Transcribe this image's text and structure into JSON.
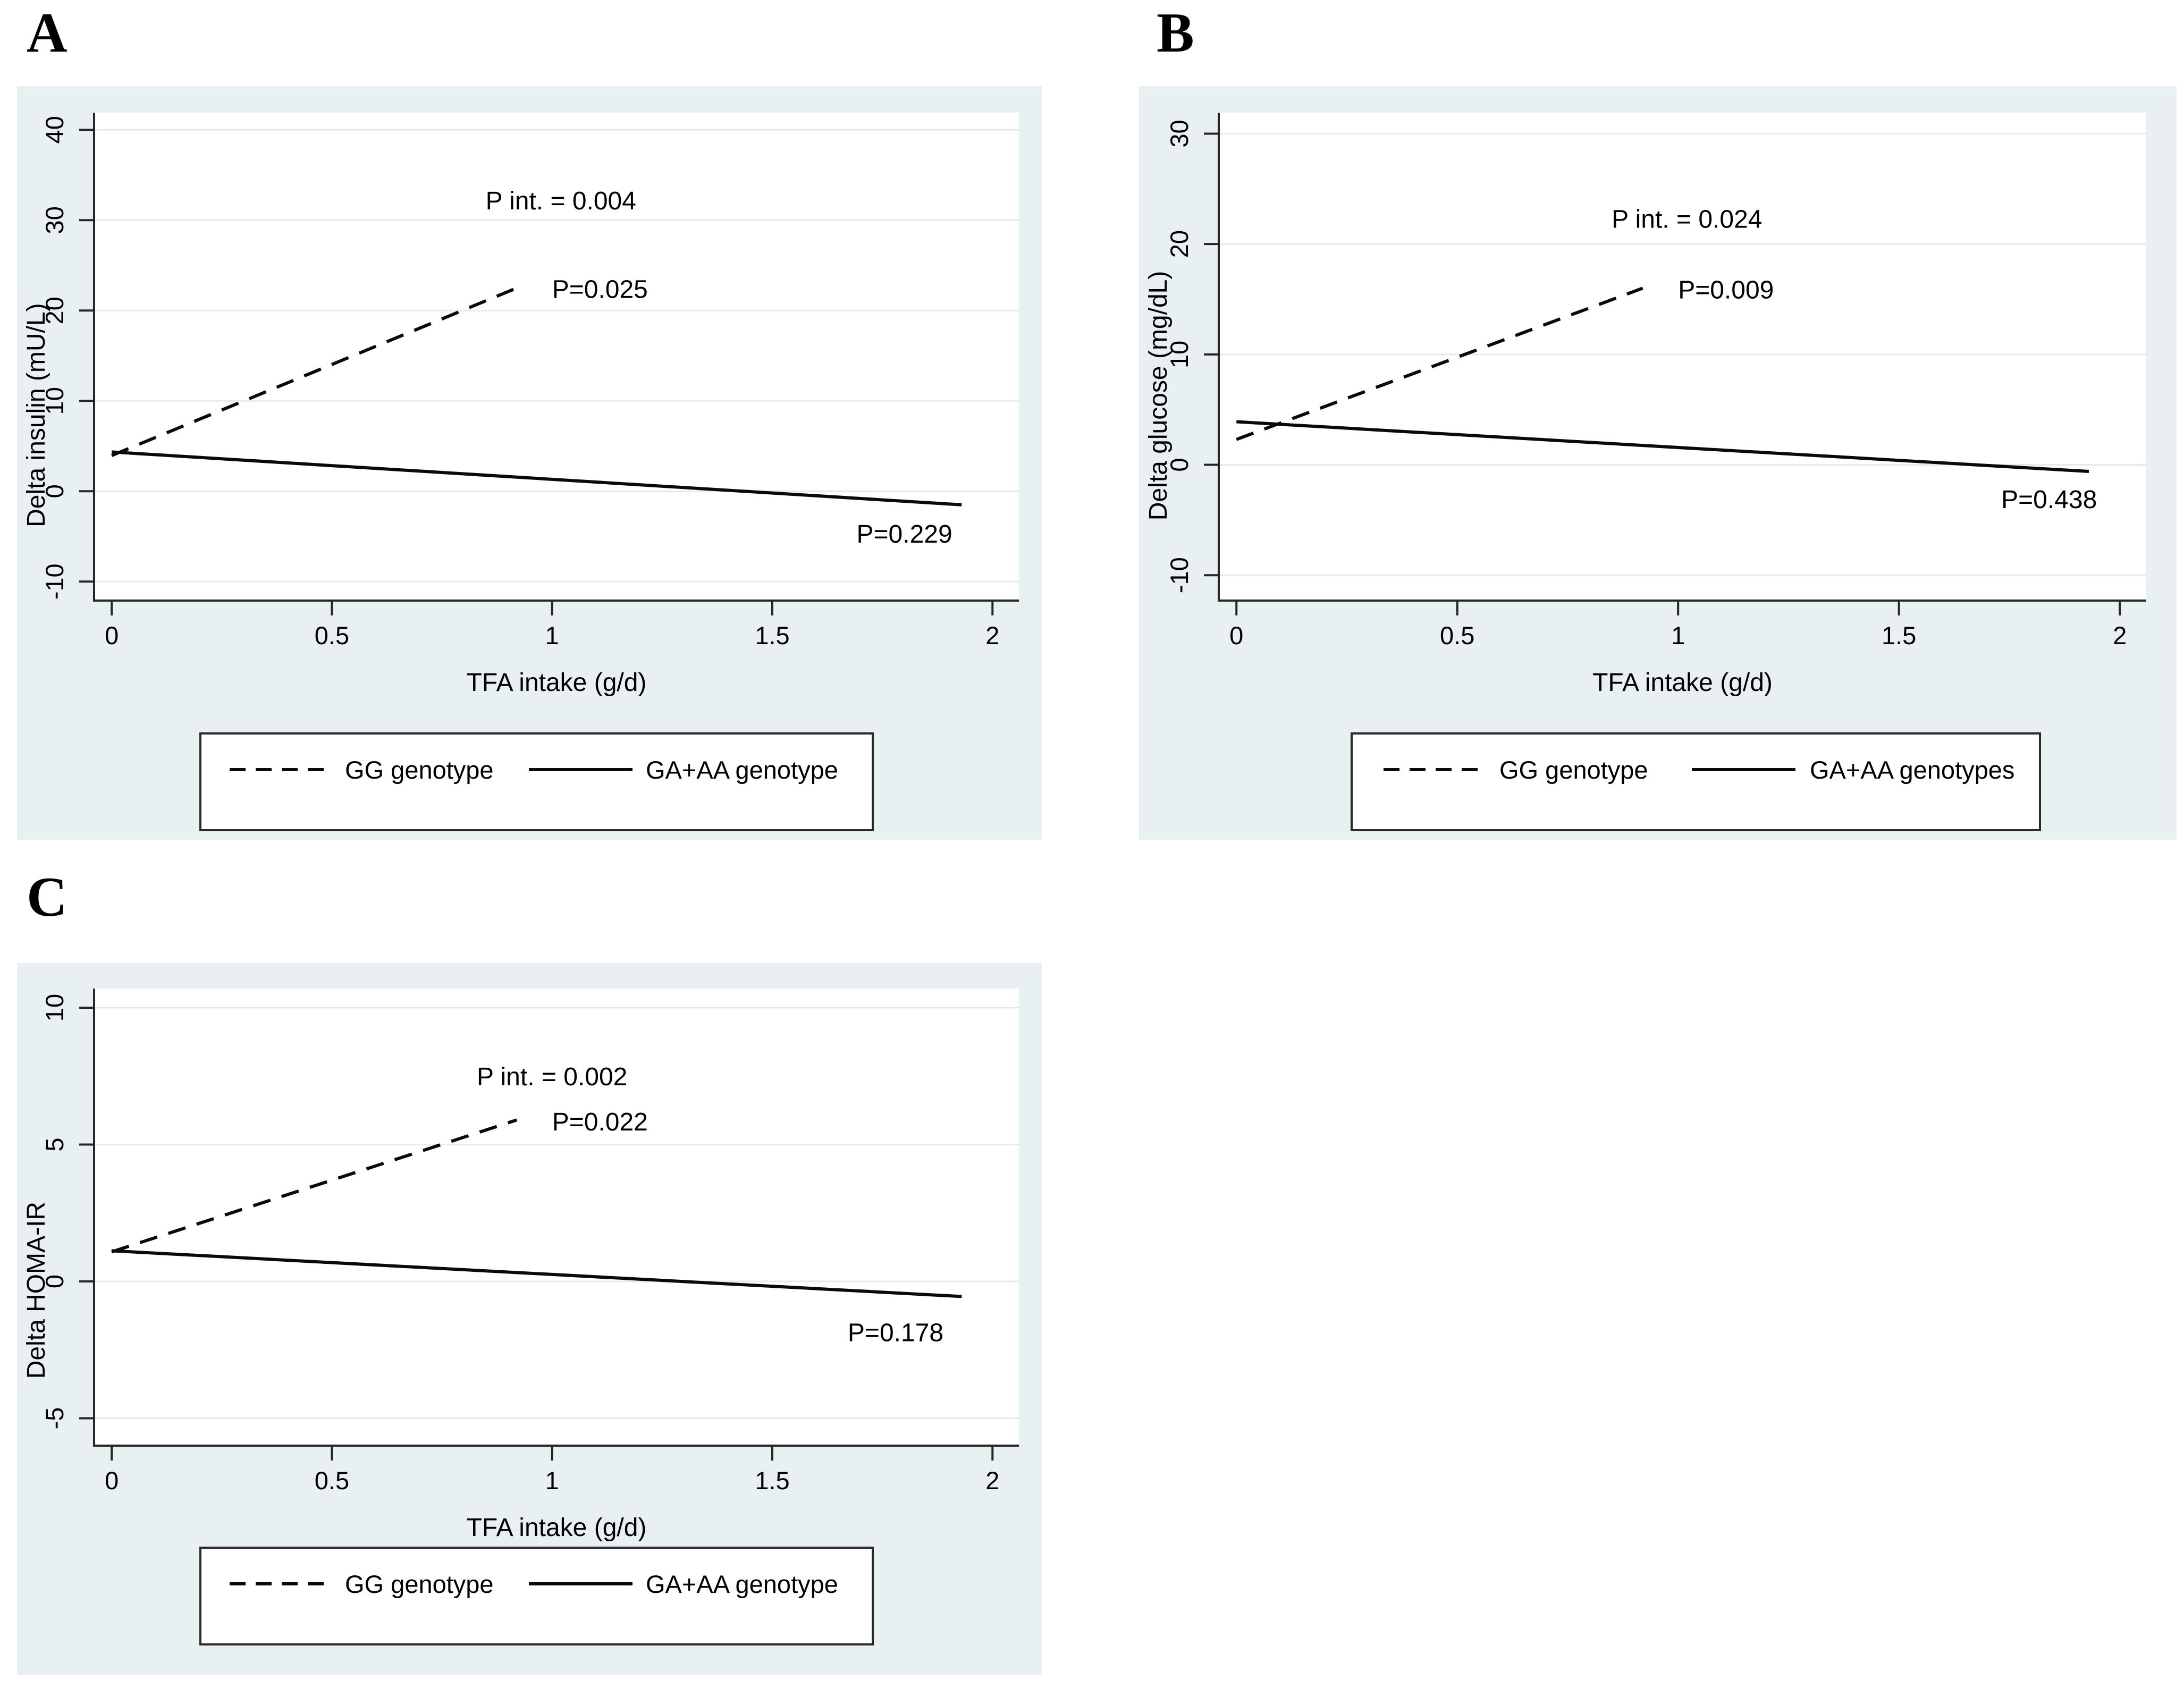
{
  "figure": {
    "description": "Interaction of TFA intake and genotype on metabolic changes",
    "panel_letters": [
      "A",
      "B",
      "C"
    ]
  },
  "theme": {
    "page_bg": "#ffffff",
    "panel_bg": "#e9f0f2",
    "plot_bg": "#ffffff",
    "grid_color": "#e2ebee",
    "axis_color": "#262626",
    "line_color": "#0a0a0a",
    "text_color": "#000000",
    "legend_border": "#2a2a2a"
  },
  "chart_data": [
    {
      "type": "line",
      "panel_label": "A",
      "xlabel": "TFA intake (g/d)",
      "ylabel": "Delta insulin (mU/L)",
      "xlim": [
        -0.04,
        2.06
      ],
      "ylim": [
        -12.1,
        41.9
      ],
      "xticks": [
        0,
        0.5,
        1,
        1.5,
        2
      ],
      "yticks": [
        -10,
        0,
        10,
        20,
        30,
        40
      ],
      "grid": true,
      "legend_position": "bottom",
      "series": [
        {
          "name": "GG genotype",
          "style": "dashed",
          "points": [
            [
              0,
              3.95
            ],
            [
              0.92,
              22.5
            ]
          ]
        },
        {
          "name": "GA+AA genotype",
          "style": "solid",
          "points": [
            [
              0,
              4.35
            ],
            [
              1.93,
              -1.5
            ]
          ]
        }
      ],
      "annotations": [
        {
          "text": "P int. = 0.004",
          "x": 1.02,
          "y": 32.2,
          "anchor": "middle"
        },
        {
          "text": "P=0.025",
          "x": 1.0,
          "y": 22.4,
          "anchor": "start"
        },
        {
          "text": "P=0.229",
          "x": 1.8,
          "y": -4.7,
          "anchor": "middle"
        }
      ],
      "legend": [
        {
          "label": "GG genotype",
          "style": "dashed"
        },
        {
          "label": "GA+AA genotype",
          "style": "solid"
        }
      ]
    },
    {
      "type": "line",
      "panel_label": "B",
      "xlabel": "TFA intake (g/d)",
      "ylabel": "Delta glucose (mg/dL)",
      "xlim": [
        -0.04,
        2.06
      ],
      "ylim": [
        -12.3,
        31.9
      ],
      "xticks": [
        0,
        0.5,
        1,
        1.5,
        2
      ],
      "yticks": [
        -10,
        0,
        10,
        20,
        30
      ],
      "grid": true,
      "legend_position": "bottom",
      "series": [
        {
          "name": "GG genotype",
          "style": "dashed",
          "points": [
            [
              0,
              2.3
            ],
            [
              0.92,
              16.0
            ]
          ]
        },
        {
          "name": "GA+AA genotypes",
          "style": "solid",
          "points": [
            [
              0,
              3.9
            ],
            [
              1.93,
              -0.6
            ]
          ]
        }
      ],
      "annotations": [
        {
          "text": "P int. = 0.024",
          "x": 1.02,
          "y": 22.3,
          "anchor": "middle"
        },
        {
          "text": "P=0.009",
          "x": 1.0,
          "y": 15.9,
          "anchor": "start"
        },
        {
          "text": "P=0.438",
          "x": 1.84,
          "y": -3.1,
          "anchor": "middle"
        }
      ],
      "legend": [
        {
          "label": "GG genotype",
          "style": "dashed"
        },
        {
          "label": "GA+AA genotypes",
          "style": "solid"
        }
      ]
    },
    {
      "type": "line",
      "panel_label": "C",
      "xlabel": "TFA intake (g/d)",
      "ylabel": "Delta HOMA-IR",
      "xlim": [
        -0.04,
        2.06
      ],
      "ylim": [
        -6.0,
        10.7
      ],
      "xticks": [
        0,
        0.5,
        1,
        1.5,
        2
      ],
      "yticks": [
        -5,
        0,
        5,
        10
      ],
      "grid": true,
      "legend_position": "bottom",
      "series": [
        {
          "name": "GG genotype",
          "style": "dashed",
          "points": [
            [
              0,
              1.08
            ],
            [
              0.92,
              5.9
            ]
          ]
        },
        {
          "name": "GA+AA genotype",
          "style": "solid",
          "points": [
            [
              0,
              1.12
            ],
            [
              1.93,
              -0.55
            ]
          ]
        }
      ],
      "annotations": [
        {
          "text": "P int. = 0.002",
          "x": 1.0,
          "y": 7.5,
          "anchor": "middle"
        },
        {
          "text": "P=0.022",
          "x": 1.0,
          "y": 5.85,
          "anchor": "start"
        },
        {
          "text": "P=0.178",
          "x": 1.78,
          "y": -1.85,
          "anchor": "middle"
        }
      ],
      "legend": [
        {
          "label": "GG genotype",
          "style": "dashed"
        },
        {
          "label": "GA+AA genotype",
          "style": "solid"
        }
      ]
    }
  ]
}
